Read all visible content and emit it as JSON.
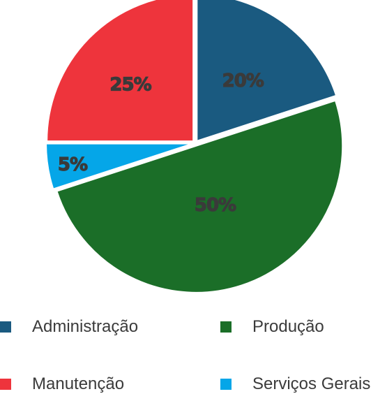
{
  "chart_data": {
    "type": "pie",
    "categories": [
      "Administração",
      "Produção",
      "Serviços Gerais",
      "Manutenção"
    ],
    "values": [
      20,
      50,
      5,
      25
    ],
    "data_labels": [
      "20%",
      "50%",
      "5%",
      "25%"
    ],
    "colors": [
      "#1a5a80",
      "#1b6e28",
      "#05a6e8",
      "#ee343c"
    ],
    "legend": {
      "placement": "bottom",
      "entries": [
        {
          "label": "Administração",
          "color": "#1a5a80"
        },
        {
          "label": "Produção",
          "color": "#1b6e28"
        },
        {
          "label": "Manutenção",
          "color": "#ee343c"
        },
        {
          "label": "Serviços Gerais",
          "color": "#05a6e8"
        }
      ]
    },
    "title": "",
    "start_angle_deg": 0,
    "direction": "clockwise",
    "exploded": true
  }
}
